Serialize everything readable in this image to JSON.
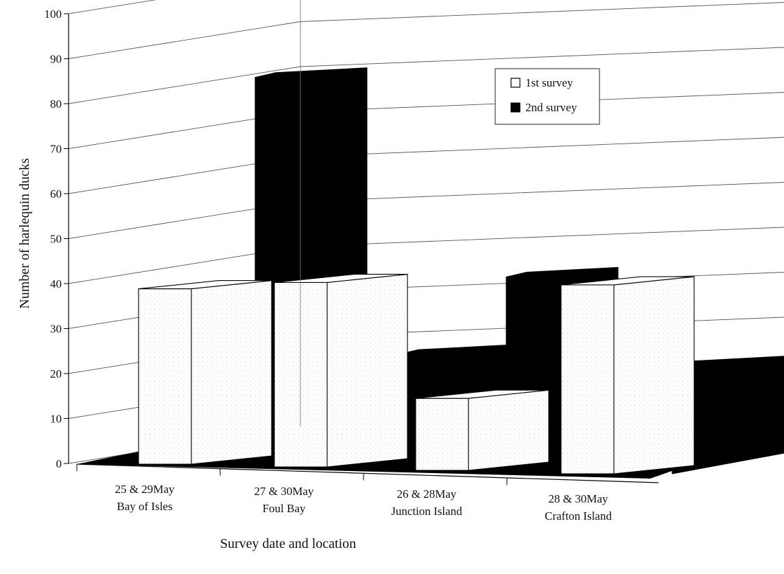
{
  "chart_data": {
    "type": "bar",
    "title": "",
    "xlabel": "Survey date and location",
    "ylabel": "Number of harlequin ducks",
    "ylim": [
      0,
      100
    ],
    "yticks": [
      0,
      10,
      20,
      30,
      40,
      50,
      60,
      70,
      80,
      90,
      100
    ],
    "grid": true,
    "legend_position": "top-right",
    "categories": [
      [
        "25 & 29May",
        "Bay of Isles"
      ],
      [
        "27 & 30May",
        "Foul Bay"
      ],
      [
        "26 & 28May",
        "Junction Island"
      ],
      [
        "28 & 30May",
        "Crafton Island"
      ]
    ],
    "series": [
      {
        "name": "1st survey",
        "values": [
          39,
          41,
          16,
          42
        ],
        "color": "#ffffff"
      },
      {
        "name": "2nd survey",
        "values": [
          86,
          25,
          43,
          24
        ],
        "color": "#000000"
      }
    ]
  }
}
